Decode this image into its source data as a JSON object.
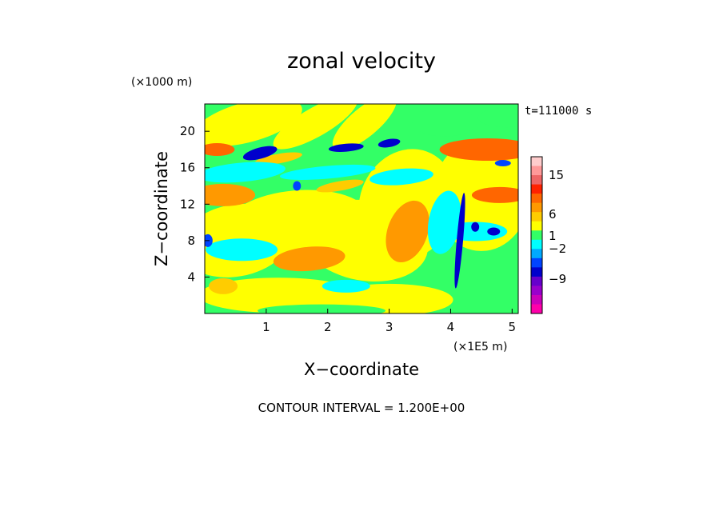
{
  "chart_data": {
    "type": "heatmap",
    "title": "zonal velocity",
    "xlabel": "X−coordinate",
    "ylabel": "Z−coordinate",
    "x_unit": "(×1E5 m)",
    "y_unit": "(×1000 m)",
    "time_label": "t=111000 s",
    "footer": "CONTOUR INTERVAL = 1.200E+00",
    "xlim": [
      0,
      5.1
    ],
    "ylim": [
      0,
      23
    ],
    "x_ticks": [
      "1",
      "2",
      "3",
      "4",
      "5"
    ],
    "x_tick_values": [
      1,
      2,
      3,
      4,
      5
    ],
    "y_ticks": [
      "4",
      "8",
      "12",
      "16",
      "20"
    ],
    "y_tick_values": [
      4,
      8,
      12,
      16,
      20
    ],
    "contour_interval": 1.2,
    "colorbar": {
      "colors": [
        "#ff00aa",
        "#cc00bb",
        "#9900cc",
        "#6600cc",
        "#0000cc",
        "#0044ff",
        "#00aaff",
        "#00ffff",
        "#33ff66",
        "#ffff00",
        "#ffcc00",
        "#ff9900",
        "#ff6600",
        "#ff2200",
        "#ee6666",
        "#ff9999",
        "#ffcccc"
      ],
      "tick_labels": [
        "15",
        "6",
        "1",
        "−2",
        "−9"
      ],
      "tick_values": [
        15,
        6,
        1,
        -2,
        -9
      ]
    },
    "grid": false,
    "legend": "colorbar-right"
  }
}
